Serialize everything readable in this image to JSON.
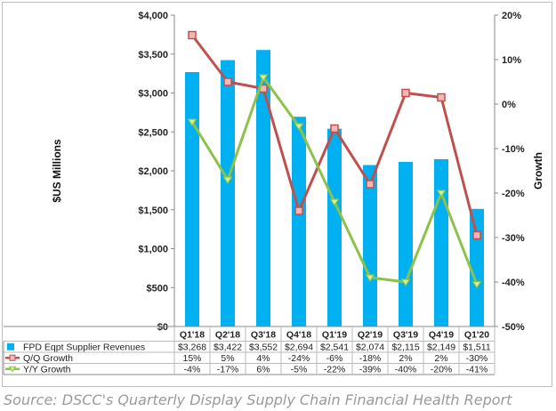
{
  "chart_data": {
    "type": "bar",
    "categories": [
      "Q1'18",
      "Q2'18",
      "Q3'18",
      "Q4'18",
      "Q1'19",
      "Q2'19",
      "Q3'19",
      "Q4'19",
      "Q1'20"
    ],
    "y_left": {
      "label": "$US Millions",
      "range": [
        0,
        4000
      ],
      "ticks": [
        0,
        500,
        1000,
        1500,
        2000,
        2500,
        3000,
        3500,
        4000
      ],
      "tick_labels": [
        "$0",
        "$500",
        "$1,000",
        "$1,500",
        "$2,000",
        "$2,500",
        "$3,000",
        "$3,500",
        "$4,000"
      ]
    },
    "y_right": {
      "label": "Growth",
      "range": [
        -50,
        20
      ],
      "ticks": [
        -50,
        -40,
        -30,
        -20,
        -10,
        0,
        10,
        20
      ],
      "tick_labels": [
        "-50%",
        "-40%",
        "-30%",
        "-20%",
        "-10%",
        "0%",
        "10%",
        "20%"
      ]
    },
    "series": [
      {
        "name": "FPD Eqpt Supplier Revenues",
        "type": "bar",
        "axis": "left",
        "color": "#00b0f0",
        "values": [
          3268,
          3422,
          3552,
          2694,
          2541,
          2074,
          2115,
          2149,
          1511
        ],
        "value_labels": [
          "$3,268",
          "$3,422",
          "$3,552",
          "$2,694",
          "$2,541",
          "$2,074",
          "$2,115",
          "$2,149",
          "$1,511"
        ]
      },
      {
        "name": "Q/Q Growth",
        "type": "line",
        "axis": "right",
        "color": "#c0504d",
        "marker": "square",
        "values": [
          15.5,
          5,
          3.5,
          -24,
          -5.5,
          -18,
          2.5,
          1.5,
          -29.5
        ],
        "value_labels": [
          "15%",
          "5%",
          "4%",
          "-24%",
          "-6%",
          "-18%",
          "2%",
          "2%",
          "-30%"
        ]
      },
      {
        "name": "Y/Y Growth",
        "type": "line",
        "axis": "right",
        "color": "#8bc34a",
        "marker": "triangle",
        "values": [
          -4,
          -17,
          6,
          -5,
          -22,
          -39,
          -40,
          -20,
          -40.5
        ],
        "value_labels": [
          "-4%",
          "-17%",
          "6%",
          "-5%",
          "-22%",
          "-39%",
          "-40%",
          "-20%",
          "-41%"
        ]
      }
    ],
    "legend": "data table below chart"
  },
  "source": "Source: DSCC's Quarterly Display Supply Chain Financial Health Report"
}
